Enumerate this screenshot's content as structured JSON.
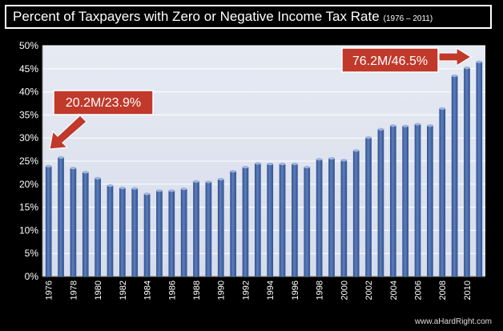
{
  "header": {
    "title": "Percent of Taxpayers with Zero or Negative Income Tax Rate",
    "subtitle": "(1976 – 2011)"
  },
  "colors": {
    "background": "#000000",
    "plot_bg": "#d6dcea",
    "bar": "#2f4f8a",
    "bar_highlight": "#5d7fbf",
    "callout": "#c0392b"
  },
  "credit": "www.aHardRight.com",
  "callouts": {
    "left": "20.2M/23.9%",
    "right": "76.2M/46.5%"
  },
  "chart_data": {
    "type": "bar",
    "title": "Percent of Taxpayers with Zero or Negative Income Tax Rate",
    "categories": [
      "1976",
      "1977",
      "1978",
      "1979",
      "1980",
      "1981",
      "1982",
      "1983",
      "1984",
      "1985",
      "1986",
      "1987",
      "1988",
      "1989",
      "1990",
      "1991",
      "1992",
      "1993",
      "1994",
      "1995",
      "1996",
      "1997",
      "1998",
      "1999",
      "2000",
      "2001",
      "2002",
      "2003",
      "2004",
      "2005",
      "2006",
      "2007",
      "2008",
      "2009",
      "2010",
      "2011"
    ],
    "tick_labels": [
      "1976",
      "1978",
      "1980",
      "1982",
      "1984",
      "1986",
      "1988",
      "1990",
      "1992",
      "1994",
      "1996",
      "1998",
      "2000",
      "2002",
      "2004",
      "2006",
      "2008",
      "2010"
    ],
    "values": [
      23.9,
      25.8,
      23.5,
      22.6,
      21.3,
      19.7,
      19.2,
      19.1,
      17.9,
      18.6,
      18.6,
      19.0,
      20.6,
      20.5,
      21.1,
      22.8,
      23.7,
      24.5,
      24.4,
      24.4,
      24.4,
      23.7,
      25.4,
      25.6,
      25.2,
      27.3,
      30.1,
      31.9,
      32.7,
      32.6,
      33.0,
      32.7,
      36.4,
      43.5,
      45.2,
      46.5
    ],
    "yticks": [
      "0%",
      "5%",
      "10%",
      "15%",
      "20%",
      "25%",
      "30%",
      "35%",
      "40%",
      "45%",
      "50%"
    ],
    "ylim": [
      0,
      50
    ],
    "grid": true,
    "xlabel": "",
    "ylabel": ""
  }
}
